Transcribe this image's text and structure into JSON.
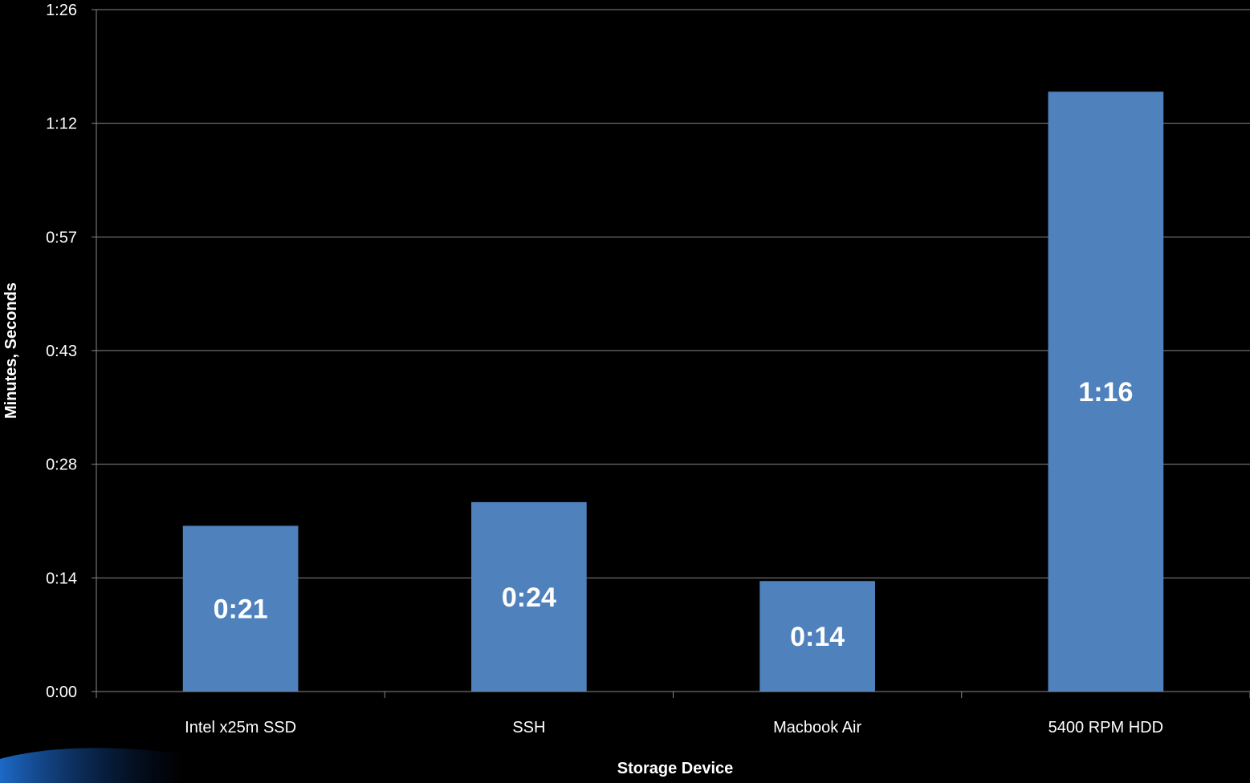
{
  "chart_data": {
    "type": "bar",
    "title": "",
    "xlabel": "Storage Device",
    "ylabel": "Minutes, Seconds",
    "categories": [
      "Intel x25m SSD",
      "SSH",
      "Macbook Air",
      "5400 RPM HDD"
    ],
    "values": [
      21,
      24,
      14,
      76
    ],
    "value_labels": [
      "0:21",
      "0:24",
      "0:14",
      "1:16"
    ],
    "value_unit": "seconds",
    "ylim": [
      0,
      86.4
    ],
    "yticks": [
      0,
      14.4,
      28.8,
      43.2,
      57.6,
      72,
      86.4
    ],
    "ytick_labels": [
      "0:00",
      "0:14",
      "0:28",
      "0:43",
      "0:57",
      "1:12",
      "1:26"
    ],
    "grid": true,
    "legend": "none",
    "colors": {
      "bar": "#4f81bd",
      "background": "#000000",
      "grid": "#888888",
      "text": "#ffffff"
    }
  }
}
